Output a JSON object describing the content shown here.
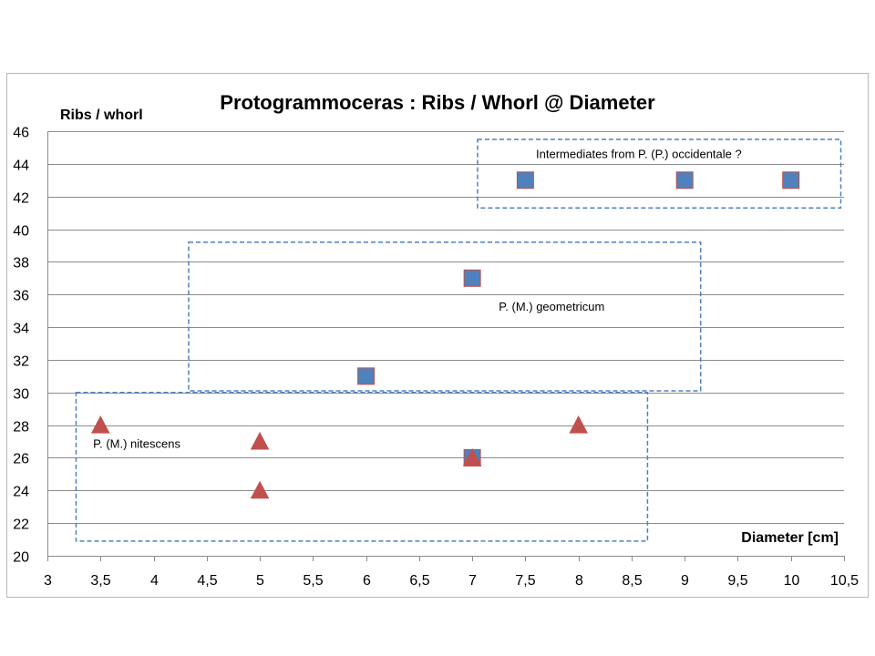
{
  "chart_data": {
    "type": "scatter",
    "title": "Protogrammoceras : Ribs / Whorl @ Diameter",
    "xlabel": "Diameter [cm]",
    "ylabel": "Ribs / whorl",
    "xlim": [
      3,
      10.5
    ],
    "ylim": [
      20,
      46
    ],
    "x_ticks": [
      "3",
      "3,5",
      "4",
      "4,5",
      "5",
      "5,5",
      "6",
      "6,5",
      "7",
      "7,5",
      "8",
      "8,5",
      "9",
      "9,5",
      "10",
      "10,5"
    ],
    "y_ticks": [
      "20",
      "22",
      "24",
      "26",
      "28",
      "30",
      "32",
      "34",
      "36",
      "38",
      "40",
      "42",
      "44",
      "46"
    ],
    "grid": "horizontal",
    "series": [
      {
        "marker": "square",
        "color": "#4f81bd",
        "edge_color": "#c0504d",
        "points": [
          {
            "x": 6,
            "y": 31
          },
          {
            "x": 7,
            "y": 37
          },
          {
            "x": 7,
            "y": 26
          },
          {
            "x": 7.5,
            "y": 43
          },
          {
            "x": 9,
            "y": 43
          },
          {
            "x": 10,
            "y": 43
          }
        ]
      },
      {
        "marker": "triangle",
        "color": "#c0504d",
        "points": [
          {
            "x": 3.5,
            "y": 28
          },
          {
            "x": 5,
            "y": 27
          },
          {
            "x": 5,
            "y": 24
          },
          {
            "x": 7,
            "y": 26
          },
          {
            "x": 8,
            "y": 28
          }
        ]
      }
    ],
    "regions": [
      {
        "label": "P. (M.) nitescens",
        "x_range": [
          3.27,
          8.65
        ],
        "y_range": [
          20.9,
          30
        ],
        "color": "#4f81bd"
      },
      {
        "label": "P. (M.) geometricum",
        "x_range": [
          4.33,
          9.15
        ],
        "y_range": [
          30.1,
          39.2
        ],
        "color": "#4f81bd"
      },
      {
        "label": "Intermediates from P. (P.) occidentale ?",
        "x_range": [
          7.05,
          10.47
        ],
        "y_range": [
          41.3,
          45.5
        ],
        "color": "#4f81bd"
      }
    ],
    "annotation_anchors": [
      {
        "x": 3.43,
        "y": 26.6
      },
      {
        "x": 7.25,
        "y": 35
      },
      {
        "x": 7.6,
        "y": 44.35
      }
    ]
  }
}
